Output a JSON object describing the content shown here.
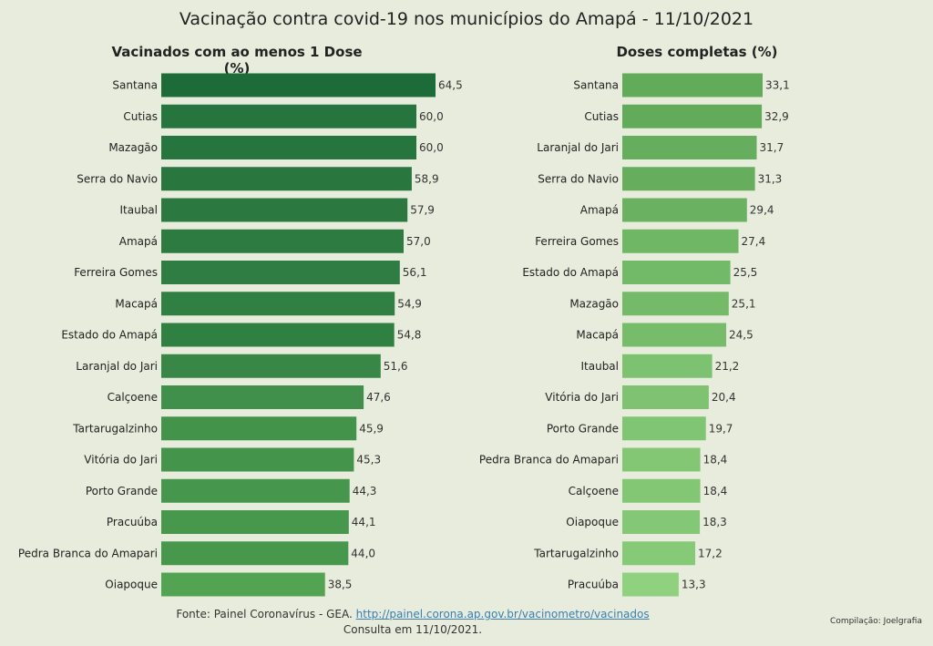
{
  "chart_data": [
    {
      "type": "bar",
      "orientation": "horizontal",
      "title": "Vacinados com ao menos 1 Dose (%)",
      "categories": [
        "Santana",
        "Cutias",
        "Mazagão",
        "Serra do Navio",
        "Itaubal",
        "Amapá",
        "Ferreira Gomes",
        "Macapá",
        "Estado do Amapá",
        "Laranjal do Jari",
        "Calçoene",
        "Tartarugalzinho",
        "Vitória do Jari",
        "Porto Grande",
        "Pracuúba",
        "Pedra Branca do Amapari",
        "Oiapoque"
      ],
      "values": [
        64.5,
        60.0,
        60.0,
        58.9,
        57.9,
        57.0,
        56.1,
        54.9,
        54.8,
        51.6,
        47.6,
        45.9,
        45.3,
        44.3,
        44.1,
        44.0,
        38.5
      ],
      "value_labels": [
        "64,5",
        "60,0",
        "60,0",
        "58,9",
        "57,9",
        "57,0",
        "56,1",
        "54,9",
        "54,8",
        "51,6",
        "47,6",
        "45,9",
        "45,3",
        "44,3",
        "44,1",
        "44,0",
        "38,5"
      ],
      "xlim": [
        0,
        64.5
      ],
      "grid": false,
      "color_scale": [
        "#52a352",
        "#1e6b3a"
      ]
    },
    {
      "type": "bar",
      "orientation": "horizontal",
      "title": "Doses completas (%)",
      "categories": [
        "Santana",
        "Cutias",
        "Laranjal do Jari",
        "Serra do Navio",
        "Amapá",
        "Ferreira Gomes",
        "Estado do Amapá",
        "Mazagão",
        "Macapá",
        "Itaubal",
        "Vitória do Jari",
        "Porto Grande",
        "Pedra Branca do Amapari",
        "Calçoene",
        "Oiapoque",
        "Tartarugalzinho",
        "Pracuúba"
      ],
      "values": [
        33.1,
        32.9,
        31.7,
        31.3,
        29.4,
        27.4,
        25.5,
        25.1,
        24.5,
        21.2,
        20.4,
        19.7,
        18.4,
        18.4,
        18.3,
        17.2,
        13.3
      ],
      "value_labels": [
        "33,1",
        "32,9",
        "31,7",
        "31,3",
        "29,4",
        "27,4",
        "25,5",
        "25,1",
        "24,5",
        "21,2",
        "20,4",
        "19,7",
        "18,4",
        "18,4",
        "18,3",
        "17,2",
        "13,3"
      ],
      "xlim": [
        0,
        33.1
      ],
      "grid": false,
      "color_scale": [
        "#8fd17f",
        "#62ab5a"
      ]
    }
  ],
  "title": "Vacinação contra covid-19 nos municípios do Amapá - 11/10/2021",
  "footer": {
    "source_prefix": "Fonte: Painel Coronavírus - GEA. ",
    "source_link": "http://painel.corona.ap.gov.br/vacinometro/vacinados",
    "consulta": "Consulta em 11/10/2021.",
    "credit": "Compilação: Joelgrafia"
  }
}
